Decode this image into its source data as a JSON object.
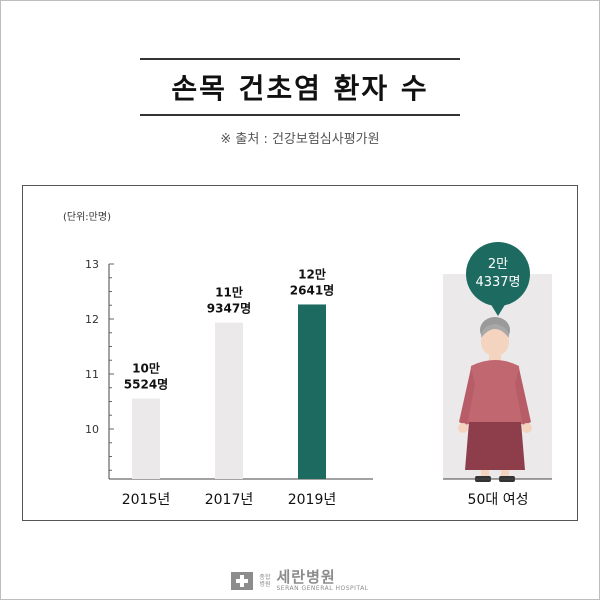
{
  "title": "손목 건초염 환자 수",
  "source": "※ 출처 : 건강보험심사평가원",
  "unit_label": "(단위:만명)",
  "chart_data": {
    "type": "bar",
    "title": "손목 건초염 환자 수",
    "ylabel": "(단위:만명)",
    "ylim": [
      9,
      13
    ],
    "yticks": [
      10,
      11,
      12,
      13
    ],
    "categories": [
      "2015년",
      "2017년",
      "2019년"
    ],
    "values": [
      10.5524,
      11.9347,
      12.2641
    ],
    "bar_labels": [
      [
        "10만",
        "5524명"
      ],
      [
        "11만",
        "9347명"
      ],
      [
        "12만",
        "2641명"
      ]
    ],
    "highlight_index": 2,
    "colors": {
      "bar": "#ebe9ea",
      "highlight": "#1d6b60"
    }
  },
  "side_panel": {
    "label": "50대 여성",
    "bubble_line1": "2만",
    "bubble_line2": "4337명",
    "bubble_color": "#1d6b60",
    "figure": "elderly-woman-illustration"
  },
  "footer": {
    "logo_small_1": "종합",
    "logo_small_2": "병원",
    "name": "세란병원",
    "name_en": "SERAN GENERAL HOSPITAL"
  }
}
